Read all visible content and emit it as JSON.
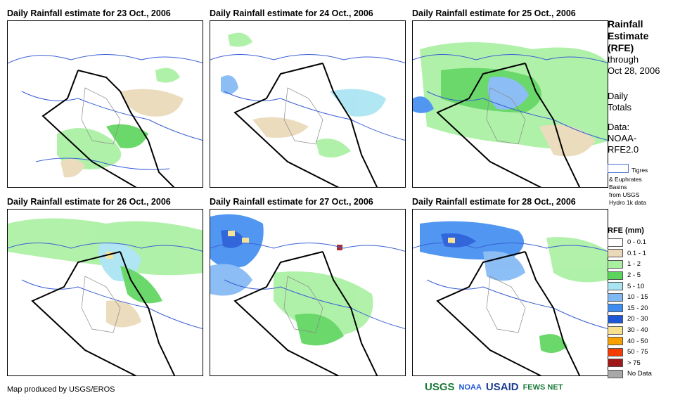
{
  "panels": [
    {
      "title": "Daily Rainfall estimate for 23 Oct., 2006"
    },
    {
      "title": "Daily Rainfall estimate for 24 Oct., 2006"
    },
    {
      "title": "Daily Rainfall estimate for 25 Oct., 2006"
    },
    {
      "title": "Daily Rainfall estimate for 26 Oct., 2006"
    },
    {
      "title": "Daily Rainfall estimate for 27 Oct., 2006"
    },
    {
      "title": "Daily Rainfall estimate for 28 Oct., 2006"
    }
  ],
  "side": {
    "title_line1": "Rainfall",
    "title_line2": "Estimate",
    "title_line3": "(RFE)",
    "through": "through",
    "date": "Oct 28, 2006",
    "daily": "Daily",
    "totals": "Totals",
    "data_label": "Data:",
    "source1": "NOAA-",
    "source2": "RFE2.0",
    "basin_line1": "Tigres",
    "basin_line2": "& Euphrates",
    "basin_line3": "Basins",
    "basin_line4": "from USGS",
    "basin_line5": "Hydro 1k data"
  },
  "legend": {
    "title": "RFE (mm)",
    "items": [
      {
        "label": "0 - 0.1",
        "color": "#ffffff"
      },
      {
        "label": "0.1 - 1",
        "color": "#ead9b8"
      },
      {
        "label": "1 - 2",
        "color": "#a8f0a0"
      },
      {
        "label": "2 - 5",
        "color": "#5ad45a"
      },
      {
        "label": "5 - 10",
        "color": "#a8e4f2"
      },
      {
        "label": "10 - 15",
        "color": "#80b8f5"
      },
      {
        "label": "15 - 20",
        "color": "#3f8cf0"
      },
      {
        "label": "20 - 30",
        "color": "#1c57d8"
      },
      {
        "label": "30 - 40",
        "color": "#f7e08c"
      },
      {
        "label": "40 - 50",
        "color": "#f7a000"
      },
      {
        "label": "50 - 75",
        "color": "#f23c00"
      },
      {
        "label": "> 75",
        "color": "#a01818"
      },
      {
        "label": "No Data",
        "color": "#a8a8a8"
      }
    ]
  },
  "footer": {
    "credit": "Map produced by USGS/EROS",
    "logo_usgs": "USGS",
    "logo_noaa": "NOAA",
    "logo_usaid": "USAID",
    "logo_fews": "FEWS NET"
  },
  "colors": {
    "border": "#000000",
    "rivers": "#3a5fd6",
    "admin": "#8a8a8a"
  }
}
